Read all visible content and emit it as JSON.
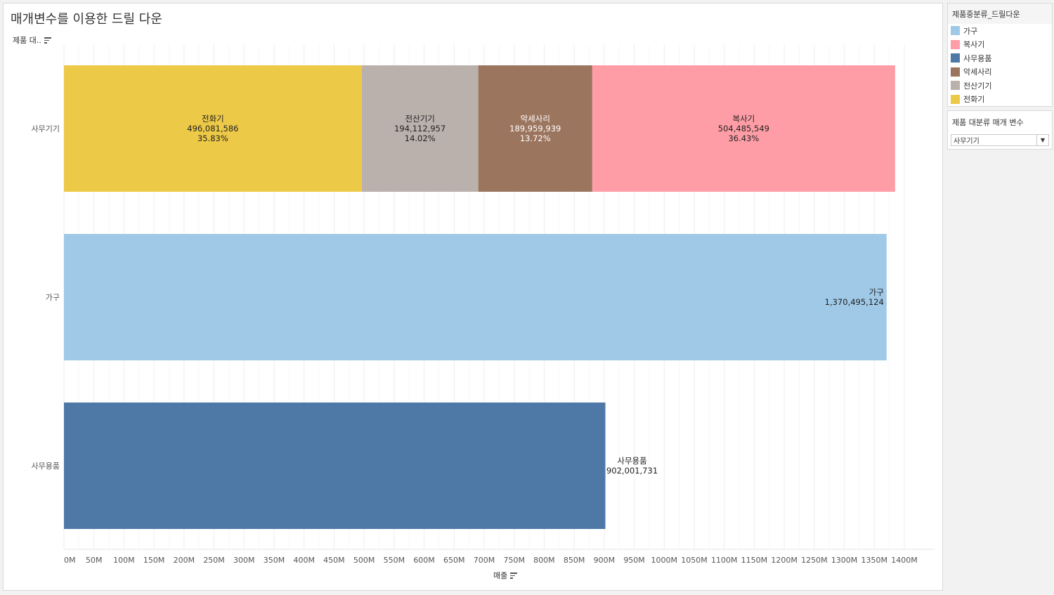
{
  "title": "매개변수를 이용한 드릴 다운",
  "row_header": "제품 대..",
  "legend": {
    "title": "제품중분류_드릴다운",
    "items": [
      {
        "label": "가구",
        "color": "#9fc9e7"
      },
      {
        "label": "복사기",
        "color": "#ff9da6"
      },
      {
        "label": "사무용품",
        "color": "#4e79a7"
      },
      {
        "label": "악세사리",
        "color": "#9c755f"
      },
      {
        "label": "전산기기",
        "color": "#bab0ac"
      },
      {
        "label": "전화기",
        "color": "#edc948"
      }
    ]
  },
  "parameter": {
    "title": "제품 대분류 매개 변수",
    "value": "사무기기"
  },
  "chart_data": {
    "type": "bar",
    "orientation": "horizontal",
    "stacked": true,
    "xlabel": "매출",
    "xlim": [
      0,
      1400000000
    ],
    "x_ticks": [
      "0M",
      "50M",
      "100M",
      "150M",
      "200M",
      "250M",
      "300M",
      "350M",
      "400M",
      "450M",
      "500M",
      "550M",
      "600M",
      "650M",
      "700M",
      "750M",
      "800M",
      "850M",
      "900M",
      "950M",
      "1000M",
      "1050M",
      "1100M",
      "1150M",
      "1200M",
      "1250M",
      "1300M",
      "1350M",
      "1400M"
    ],
    "grid": true,
    "categories": [
      "사무기기",
      "가구",
      "사무용품"
    ],
    "segments": [
      [
        {
          "label": "전화기",
          "value": 496081586,
          "value_text": "496,081,586",
          "pct": "35.83%",
          "color": "#edc948"
        },
        {
          "label": "전산기기",
          "value": 194112957,
          "value_text": "194,112,957",
          "pct": "14.02%",
          "color": "#bab0ac"
        },
        {
          "label": "악세사리",
          "value": 189959939,
          "value_text": "189,959,939",
          "pct": "13.72%",
          "color": "#9c755f"
        },
        {
          "label": "복사기",
          "value": 504485549,
          "value_text": "504,485,549",
          "pct": "36.43%",
          "color": "#ff9da6"
        }
      ],
      [
        {
          "label": "가구",
          "value": 1370495124,
          "value_text": "1,370,495,124",
          "pct": "",
          "color": "#9fc9e7"
        }
      ],
      [
        {
          "label": "사무용품",
          "value": 902001731,
          "value_text": "902,001,731",
          "pct": "",
          "color": "#4e79a7"
        }
      ]
    ]
  }
}
